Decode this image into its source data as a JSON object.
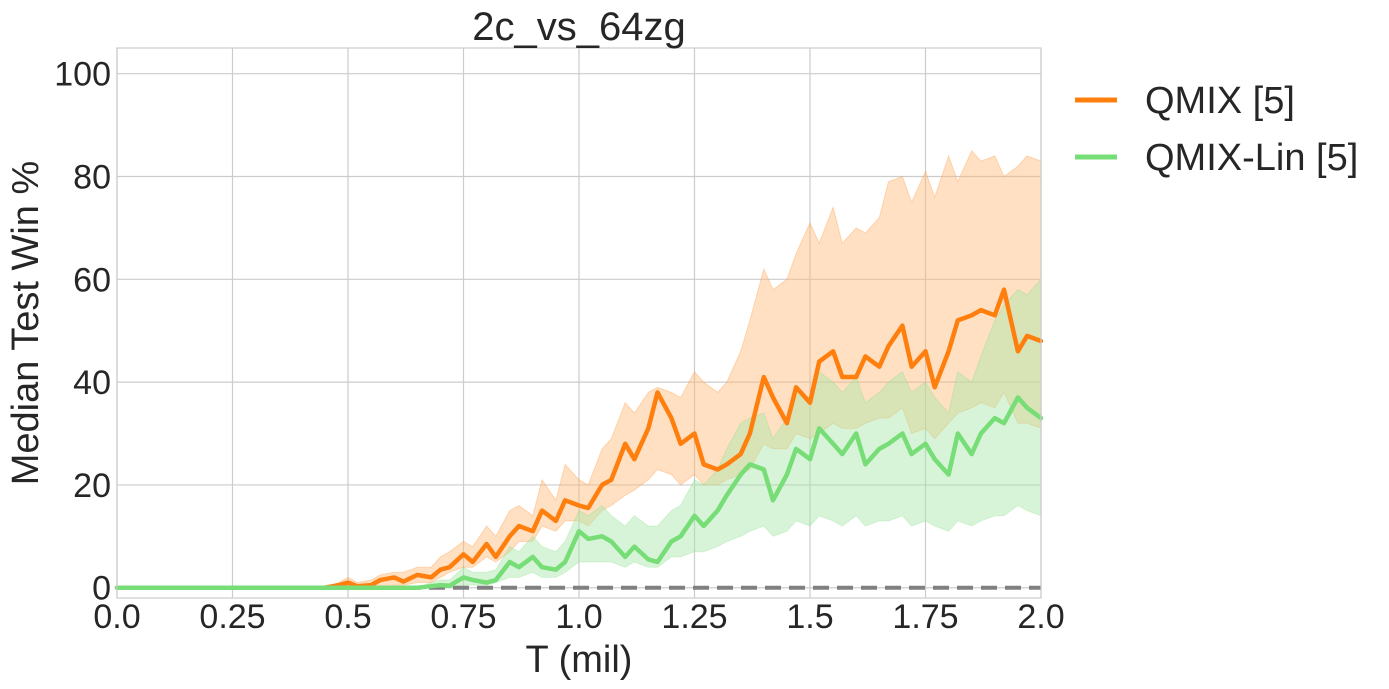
{
  "chart_data": {
    "type": "line",
    "title": "2c_vs_64zg",
    "xlabel": "T (mil)",
    "ylabel": "Median Test Win %",
    "xlim": [
      0,
      2.0
    ],
    "ylim": [
      -2,
      105
    ],
    "xticks": [
      0.0,
      0.25,
      0.5,
      0.75,
      1.0,
      1.25,
      1.5,
      1.75,
      2.0
    ],
    "xtick_labels": [
      "0.0",
      "0.25",
      "0.5",
      "0.75",
      "1.0",
      "1.25",
      "1.5",
      "1.75",
      "2.0"
    ],
    "yticks": [
      0,
      20,
      40,
      60,
      80,
      100
    ],
    "ytick_labels": [
      "0",
      "20",
      "40",
      "60",
      "80",
      "100"
    ],
    "grid": true,
    "legend_position": "outside-top-right",
    "baseline": {
      "y": 0,
      "style": "dashed",
      "color": "#808080"
    },
    "series": [
      {
        "name": "QMIX [5]",
        "color": "#ff7f0e",
        "band_color": "#ffbb78",
        "x": [
          0.0,
          0.45,
          0.48,
          0.5,
          0.52,
          0.55,
          0.57,
          0.6,
          0.62,
          0.65,
          0.68,
          0.7,
          0.72,
          0.75,
          0.77,
          0.8,
          0.82,
          0.85,
          0.87,
          0.9,
          0.92,
          0.95,
          0.97,
          1.0,
          1.02,
          1.05,
          1.07,
          1.1,
          1.12,
          1.15,
          1.17,
          1.2,
          1.22,
          1.25,
          1.27,
          1.3,
          1.32,
          1.35,
          1.37,
          1.4,
          1.42,
          1.45,
          1.47,
          1.5,
          1.52,
          1.55,
          1.57,
          1.6,
          1.62,
          1.65,
          1.67,
          1.7,
          1.72,
          1.75,
          1.77,
          1.8,
          1.82,
          1.85,
          1.87,
          1.9,
          1.92,
          1.95,
          1.97,
          2.0
        ],
        "values": [
          0,
          0,
          0.5,
          1.0,
          0.3,
          0.5,
          1.5,
          2.0,
          1.2,
          2.5,
          2.0,
          3.5,
          4.0,
          6.5,
          5.0,
          8.5,
          6.0,
          10.0,
          12.0,
          11.0,
          15.0,
          13.0,
          17.0,
          16.0,
          15.5,
          20.0,
          21.0,
          28.0,
          25.0,
          31.0,
          38.0,
          33.0,
          28.0,
          30.0,
          24.0,
          23.0,
          24.0,
          26.0,
          30.0,
          41.0,
          37.0,
          32.0,
          39.0,
          36.0,
          44.0,
          46.0,
          41.0,
          41.0,
          45.0,
          43.0,
          47.0,
          51.0,
          43.0,
          46.0,
          39.0,
          46.0,
          52.0,
          53.0,
          54.0,
          53.0,
          58.0,
          46.0,
          49.0,
          48.0
        ],
        "lower": [
          0,
          0,
          0,
          0,
          0,
          0,
          0,
          0.5,
          0.5,
          1.0,
          1.0,
          2.0,
          3.0,
          4.0,
          4.0,
          6.0,
          5.0,
          7.0,
          9.0,
          9.0,
          12.0,
          11.0,
          13.0,
          13.0,
          12.0,
          15.0,
          16.0,
          18.0,
          19.0,
          21.0,
          23.0,
          22.0,
          20.0,
          22.0,
          20.0,
          20.0,
          21.0,
          22.0,
          23.0,
          28.0,
          27.0,
          27.0,
          30.0,
          29.0,
          30.0,
          32.0,
          31.0,
          31.0,
          32.0,
          33.0,
          33.0,
          35.0,
          30.0,
          31.0,
          29.0,
          32.0,
          34.0,
          35.0,
          36.0,
          35.0,
          38.0,
          32.0,
          32.0,
          31.0
        ],
        "upper": [
          0,
          0,
          1.0,
          2.0,
          1.0,
          1.5,
          2.5,
          3.0,
          3.0,
          4.0,
          4.0,
          6.0,
          7.0,
          9.0,
          8.0,
          12.0,
          10.0,
          15.0,
          16.0,
          14.0,
          21.0,
          17.0,
          24.0,
          21.0,
          20.0,
          27.0,
          29.0,
          36.0,
          34.0,
          38.0,
          39.0,
          38.0,
          37.0,
          42.0,
          40.0,
          38.0,
          40.0,
          46.0,
          52.0,
          62.0,
          58.0,
          60.0,
          65.0,
          71.0,
          67.0,
          74.0,
          67.0,
          70.0,
          69.0,
          72.0,
          79.0,
          80.0,
          75.0,
          81.0,
          76.0,
          84.0,
          79.0,
          85.0,
          83.0,
          84.0,
          80.0,
          82.0,
          84.0,
          83.0
        ]
      },
      {
        "name": "QMIX-Lin [5]",
        "color": "#77dd77",
        "band_color": "#a8e6a8",
        "x": [
          0.0,
          0.65,
          0.68,
          0.7,
          0.72,
          0.75,
          0.77,
          0.8,
          0.82,
          0.85,
          0.87,
          0.9,
          0.92,
          0.95,
          0.97,
          1.0,
          1.02,
          1.05,
          1.07,
          1.1,
          1.12,
          1.15,
          1.17,
          1.2,
          1.22,
          1.25,
          1.27,
          1.3,
          1.32,
          1.35,
          1.37,
          1.4,
          1.42,
          1.45,
          1.47,
          1.5,
          1.52,
          1.55,
          1.57,
          1.6,
          1.62,
          1.65,
          1.67,
          1.7,
          1.72,
          1.75,
          1.77,
          1.8,
          1.82,
          1.85,
          1.87,
          1.9,
          1.92,
          1.95,
          1.97,
          2.0
        ],
        "values": [
          0,
          0,
          0.3,
          0.5,
          0.4,
          2.0,
          1.5,
          1.0,
          1.5,
          5.0,
          4.0,
          6.0,
          4.0,
          3.5,
          5.0,
          11.0,
          9.5,
          10.0,
          9.0,
          6.0,
          8.0,
          5.5,
          5.0,
          9.0,
          10.0,
          14.0,
          12.0,
          15.0,
          18.0,
          22.0,
          24.0,
          23.0,
          17.0,
          22.0,
          27.0,
          25.0,
          31.0,
          28.0,
          26.0,
          30.0,
          24.0,
          27.0,
          28.0,
          30.0,
          26.0,
          28.0,
          25.0,
          22.0,
          30.0,
          26.0,
          30.0,
          33.0,
          32.0,
          37.0,
          35.0,
          33.0
        ],
        "lower": [
          0,
          0,
          0,
          0,
          0,
          0.5,
          0.5,
          0.5,
          1.0,
          2.0,
          2.0,
          3.0,
          2.0,
          2.0,
          3.0,
          5.0,
          5.0,
          5.0,
          5.0,
          4.0,
          5.0,
          4.0,
          4.0,
          6.0,
          6.0,
          7.0,
          7.0,
          8.0,
          9.0,
          10.0,
          11.0,
          12.0,
          10.0,
          11.0,
          13.0,
          12.0,
          14.0,
          13.0,
          12.0,
          14.0,
          12.0,
          13.0,
          13.0,
          14.0,
          12.0,
          13.0,
          12.0,
          11.0,
          13.0,
          12.0,
          13.0,
          14.0,
          14.0,
          16.0,
          15.0,
          14.0
        ],
        "upper": [
          0,
          0,
          1.0,
          1.5,
          1.5,
          4.0,
          3.0,
          3.0,
          3.5,
          8.0,
          7.0,
          10.0,
          8.0,
          7.0,
          9.0,
          15.0,
          14.0,
          16.0,
          14.0,
          12.0,
          14.0,
          12.0,
          12.0,
          15.0,
          16.0,
          21.0,
          20.0,
          23.0,
          27.0,
          32.0,
          33.0,
          34.0,
          29.0,
          33.0,
          38.0,
          37.0,
          42.0,
          40.0,
          38.0,
          41.0,
          36.0,
          38.0,
          40.0,
          42.0,
          38.0,
          40.0,
          37.0,
          34.0,
          42.0,
          40.0,
          45.0,
          52.0,
          55.0,
          58.0,
          57.0,
          60.0
        ]
      }
    ]
  }
}
